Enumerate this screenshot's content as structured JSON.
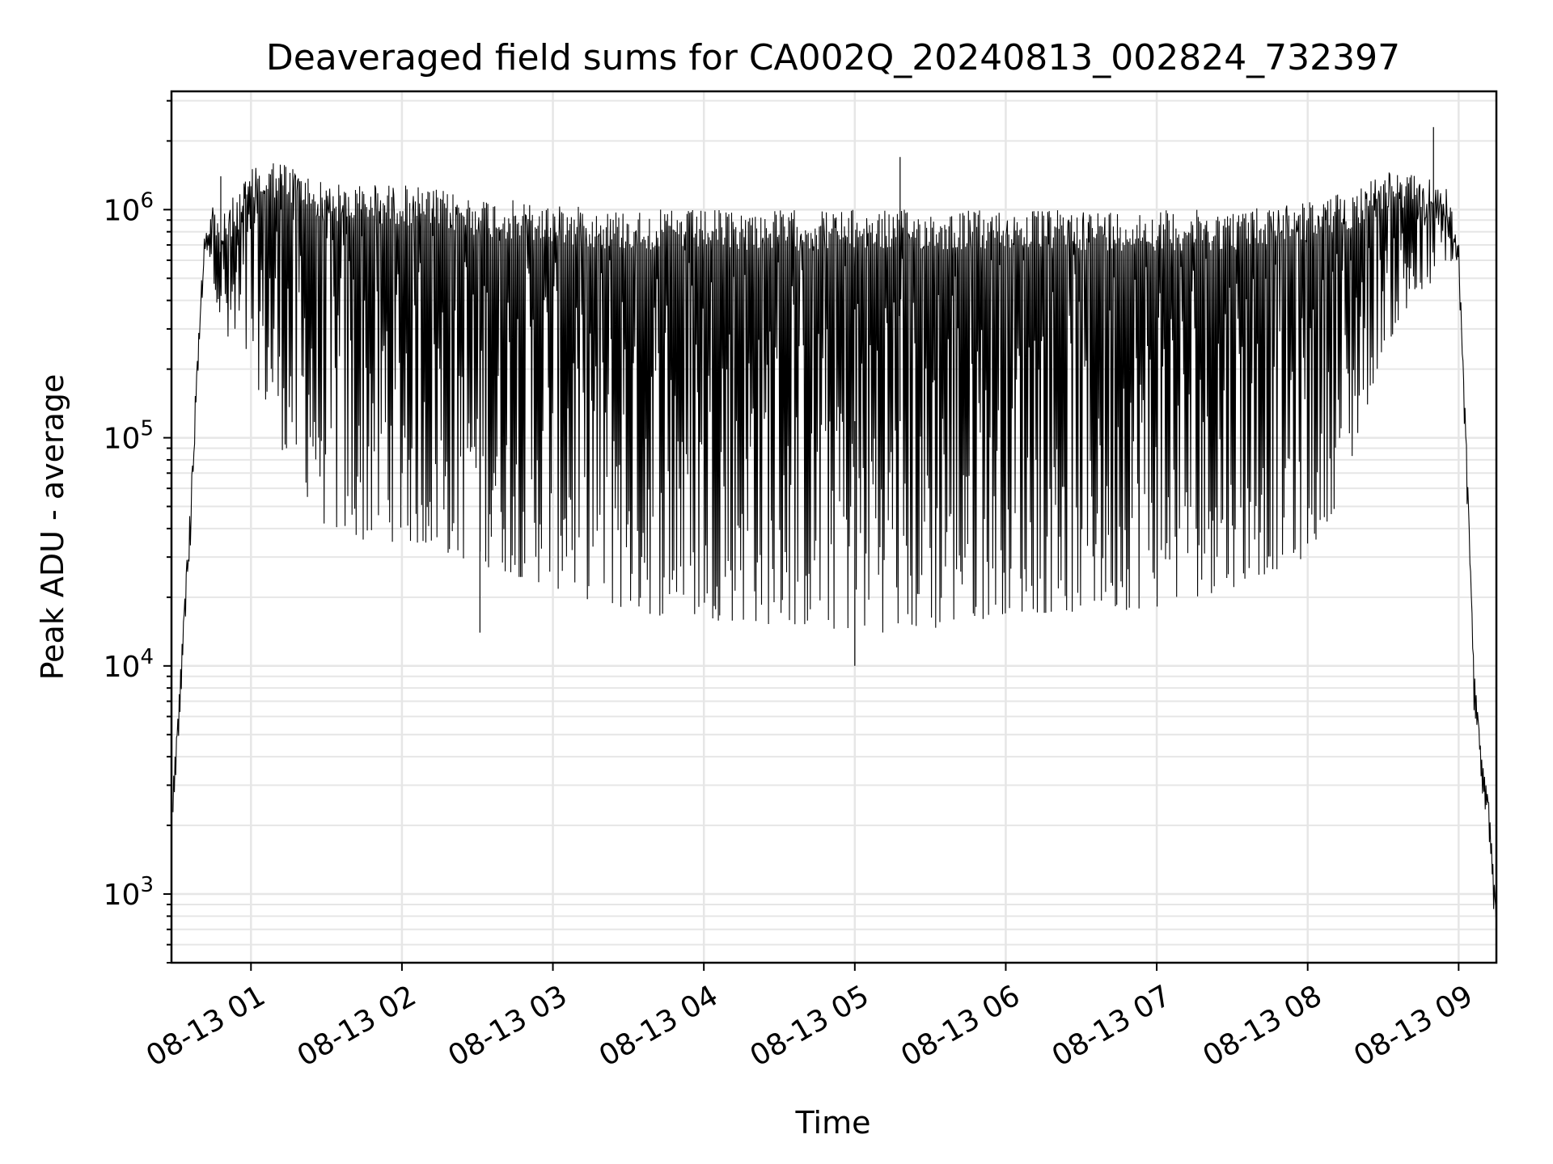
{
  "chart_data": {
    "type": "line",
    "title": "Deaveraged field sums for CA002Q_20240813_002824_732397",
    "xlabel": "Time",
    "ylabel": "Peak ADU - average",
    "y_scale": "log",
    "ylim": [
      500,
      3300000
    ],
    "xlim": [
      "2024-08-13 00:28:24",
      "2024-08-13 09:15:00"
    ],
    "x_ticks": [
      "08-13 01",
      "08-13 02",
      "08-13 03",
      "08-13 04",
      "08-13 05",
      "08-13 06",
      "08-13 07",
      "08-13 08",
      "08-13 09"
    ],
    "y_ticks": [
      {
        "base": "10",
        "exp": "3",
        "value": 1000
      },
      {
        "base": "10",
        "exp": "4",
        "value": 10000
      },
      {
        "base": "10",
        "exp": "5",
        "value": 100000
      },
      {
        "base": "10",
        "exp": "6",
        "value": 1000000
      }
    ],
    "grid": true,
    "line_color": "#000000",
    "grid_color": "#e6e6e6",
    "series": [
      {
        "x": [
          "2024-08-13 00:29",
          "2024-08-13 00:31",
          "2024-08-13 00:33",
          "2024-08-13 00:36",
          "2024-08-13 00:39",
          "2024-08-13 00:42",
          "2024-08-13 00:45",
          "2024-08-13 00:48",
          "2024-08-13 00:52",
          "2024-08-13 01:00",
          "2024-08-13 01:10",
          "2024-08-13 01:20",
          "2024-08-13 01:30",
          "2024-08-13 01:40",
          "2024-08-13 01:50",
          "2024-08-13 02:00",
          "2024-08-13 02:30",
          "2024-08-13 03:00",
          "2024-08-13 03:30",
          "2024-08-13 04:00",
          "2024-08-13 04:30",
          "2024-08-13 05:00",
          "2024-08-13 05:30",
          "2024-08-13 06:00",
          "2024-08-13 06:30",
          "2024-08-13 07:00",
          "2024-08-13 07:30",
          "2024-08-13 08:00",
          "2024-08-13 08:15",
          "2024-08-13 08:30",
          "2024-08-13 08:45",
          "2024-08-13 08:55",
          "2024-08-13 09:00",
          "2024-08-13 09:03",
          "2024-08-13 09:06",
          "2024-08-13 09:09",
          "2024-08-13 09:12",
          "2024-08-13 09:15"
        ],
        "upper": [
          3000,
          6000,
          15000,
          60000,
          300000,
          1000000,
          1100000,
          900000,
          1100000,
          1500000,
          1700000,
          1500000,
          1300000,
          1300000,
          1300000,
          1300000,
          1150000,
          1050000,
          1000000,
          1000000,
          1000000,
          1000000,
          1000000,
          1000000,
          1000000,
          1000000,
          1000000,
          1100000,
          1200000,
          1500000,
          1400000,
          1300000,
          800000,
          100000,
          10000,
          4000,
          2500,
          800
        ],
        "lower": [
          3000,
          6000,
          15000,
          30000,
          250000,
          700000,
          500000,
          300000,
          200000,
          200000,
          100000,
          60000,
          40000,
          35000,
          35000,
          35000,
          28000,
          22000,
          17000,
          16000,
          15000,
          14000,
          14000,
          17000,
          17000,
          18000,
          22000,
          30000,
          60000,
          250000,
          400000,
          600000,
          500000,
          100000,
          10000,
          4000,
          2500,
          800
        ]
      }
    ],
    "spikes": [
      {
        "x": "2024-08-13 00:48",
        "y": 1400000
      },
      {
        "x": "2024-08-13 02:31",
        "y": 14000
      },
      {
        "x": "2024-08-13 05:00",
        "y": 10000
      },
      {
        "x": "2024-08-13 05:18",
        "y": 1700000
      },
      {
        "x": "2024-08-13 08:50",
        "y": 2300000
      }
    ]
  }
}
